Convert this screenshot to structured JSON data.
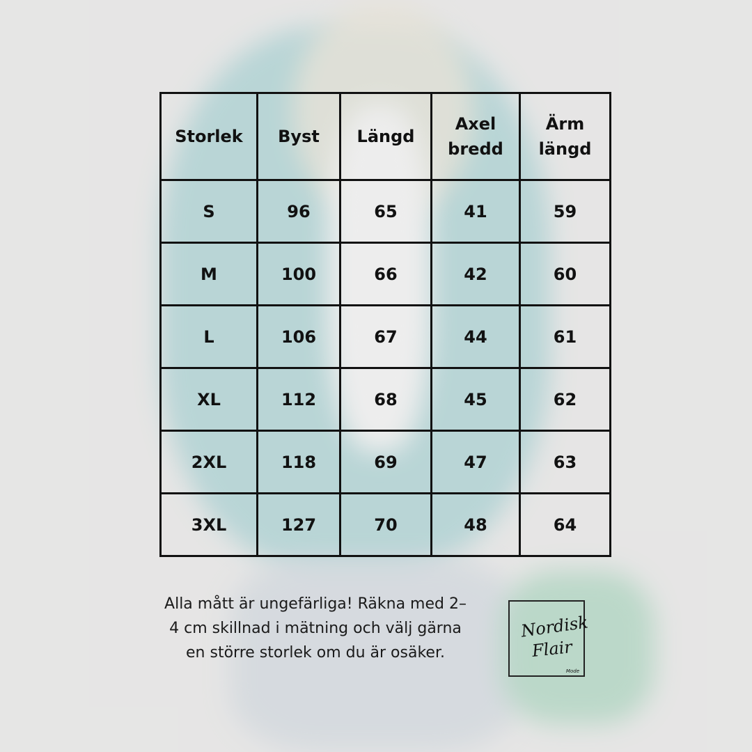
{
  "table": {
    "headers": [
      [
        "Storlek"
      ],
      [
        "Byst"
      ],
      [
        "Längd"
      ],
      [
        "Axel",
        "bredd"
      ],
      [
        "Ärm",
        "längd"
      ]
    ],
    "rows": [
      [
        "S",
        "96",
        "65",
        "41",
        "59"
      ],
      [
        "M",
        "100",
        "66",
        "42",
        "60"
      ],
      [
        "L",
        "106",
        "67",
        "44",
        "61"
      ],
      [
        "XL",
        "112",
        "68",
        "45",
        "62"
      ],
      [
        "2XL",
        "118",
        "69",
        "47",
        "63"
      ],
      [
        "3XL",
        "127",
        "70",
        "48",
        "64"
      ]
    ]
  },
  "note": "Alla mått är ungefärliga! Räkna med 2–4 cm skillnad i mätning och välj gärna en större storlek om du är osäker.",
  "logo": {
    "line1": "Nordisk",
    "line2": "Flair",
    "line3": "Mode"
  },
  "colors": {
    "blazer": "#2aa0a6",
    "bag": "#3aa070",
    "background": "#e4e3e2"
  }
}
